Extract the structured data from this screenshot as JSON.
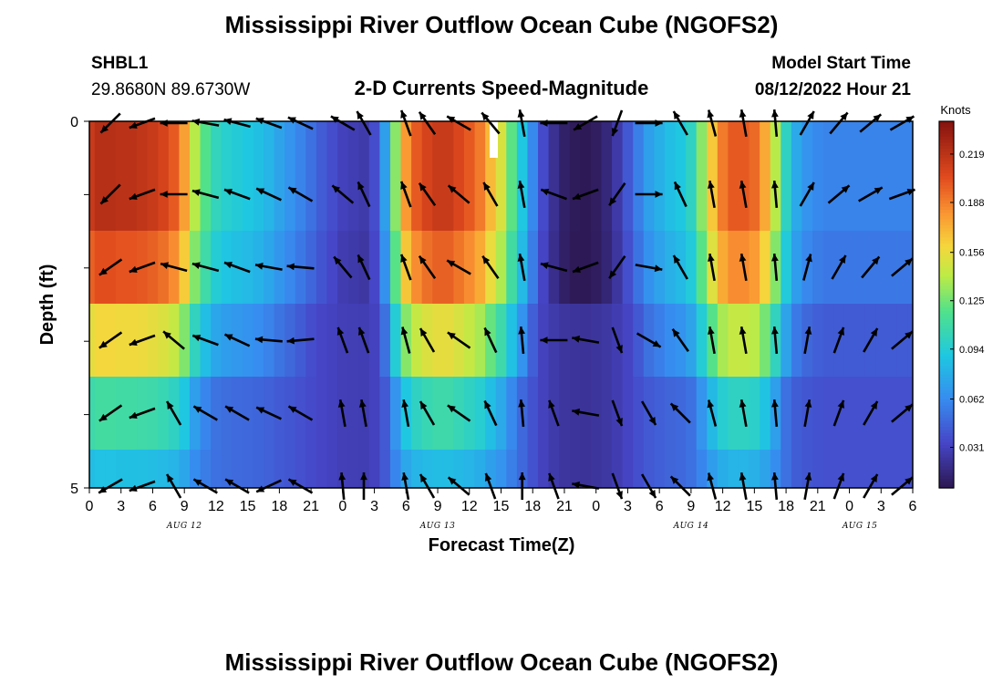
{
  "header": {
    "title": "Mississippi River Outflow Ocean Cube (NGOFS2)",
    "station_id": "SHBL1",
    "coordinates": "29.8680N  89.6730W",
    "subtitle": "2-D Currents Speed-Magnitude",
    "model_start_label": "Model Start Time",
    "model_start_value": "08/12/2022 Hour 21"
  },
  "footer": {
    "title": "Mississippi River Outflow Ocean Cube (NGOFS2)"
  },
  "chart_data": {
    "type": "heatmap",
    "title": "2-D Currents Speed-Magnitude",
    "xlabel": "Forecast Time(Z)",
    "ylabel": "Depth (ft)",
    "colorbar_label": "Knots",
    "colorbar_ticks": [
      "0.219",
      "0.188",
      "0.156",
      "0.125",
      "0.094",
      "0.062",
      "0.031"
    ],
    "colorbar_range": [
      0.005,
      0.24
    ],
    "x_tick_labels": [
      "0",
      "3",
      "6",
      "9",
      "12",
      "15",
      "18",
      "21",
      "0",
      "3",
      "6",
      "9",
      "12",
      "15",
      "18",
      "21",
      "0",
      "3",
      "6",
      "9",
      "12",
      "15",
      "18",
      "21",
      "0",
      "3",
      "6"
    ],
    "x_range_hours": [
      21,
      99
    ],
    "date_labels": [
      {
        "label": "AUG 12",
        "hour": 30
      },
      {
        "label": "AUG 13",
        "hour": 54
      },
      {
        "label": "AUG 14",
        "hour": 78
      },
      {
        "label": "AUG 15",
        "hour": 94
      }
    ],
    "y_tick_labels": [
      "0",
      "5"
    ],
    "y_range": [
      0,
      5
    ],
    "grid": false,
    "speed_profile_hours": [
      21,
      22,
      23,
      24,
      25,
      26,
      27,
      28,
      29,
      30,
      31,
      32,
      33,
      34,
      35,
      36,
      37,
      38,
      39,
      40,
      41,
      42,
      43,
      44,
      45,
      46,
      47,
      48,
      49,
      50,
      51,
      52,
      53,
      54,
      55,
      56,
      57,
      58,
      59,
      60,
      61,
      62,
      63,
      64,
      65,
      66,
      67,
      68,
      69,
      70,
      71,
      72,
      73,
      74,
      75,
      76,
      77,
      78,
      79,
      80,
      81,
      82,
      83,
      84,
      85,
      86,
      87,
      88,
      89,
      90,
      91,
      92,
      93,
      94,
      95,
      96,
      97,
      98,
      99
    ],
    "layer_scales": [
      1.0,
      1.0,
      0.92,
      0.72,
      0.5,
      0.32
    ],
    "speed_profile": [
      0.215,
      0.222,
      0.222,
      0.22,
      0.22,
      0.218,
      0.215,
      0.21,
      0.2,
      0.178,
      0.14,
      0.118,
      0.102,
      0.096,
      0.093,
      0.09,
      0.086,
      0.08,
      0.072,
      0.065,
      0.058,
      0.05,
      0.042,
      0.036,
      0.03,
      0.028,
      0.026,
      0.036,
      0.07,
      0.13,
      0.18,
      0.2,
      0.21,
      0.215,
      0.215,
      0.208,
      0.2,
      0.19,
      0.17,
      0.15,
      0.12,
      0.09,
      0.06,
      0.035,
      0.02,
      0.01,
      0.006,
      0.005,
      0.008,
      0.014,
      0.025,
      0.04,
      0.056,
      0.07,
      0.078,
      0.085,
      0.09,
      0.1,
      0.13,
      0.165,
      0.19,
      0.2,
      0.2,
      0.195,
      0.175,
      0.14,
      0.1,
      0.075,
      0.065,
      0.06,
      0.058,
      0.058,
      0.058,
      0.058,
      0.058,
      0.058,
      0.058,
      0.058,
      0.058
    ],
    "vectors": {
      "hours": [
        23,
        26,
        29,
        32,
        35,
        38,
        41,
        45,
        47,
        51,
        53,
        56,
        59,
        62,
        65,
        68,
        71,
        74,
        77,
        80,
        83,
        86,
        89,
        92,
        95,
        98
      ],
      "angles_deg": [
        [
          225,
          200,
          180,
          170,
          165,
          160,
          155,
          150,
          120,
          110,
          125,
          150,
          130,
          100,
          180,
          210,
          250,
          0,
          120,
          105,
          100,
          95,
          60,
          50,
          40,
          30
        ],
        [
          225,
          200,
          180,
          165,
          160,
          155,
          150,
          140,
          115,
          110,
          125,
          140,
          120,
          100,
          160,
          200,
          235,
          0,
          115,
          100,
          100,
          95,
          60,
          40,
          30,
          20
        ],
        [
          215,
          200,
          165,
          165,
          160,
          170,
          175,
          130,
          115,
          110,
          125,
          150,
          125,
          100,
          165,
          200,
          235,
          350,
          120,
          100,
          100,
          95,
          75,
          60,
          50,
          40
        ],
        [
          215,
          200,
          140,
          160,
          155,
          175,
          185,
          110,
          110,
          105,
          120,
          145,
          115,
          95,
          180,
          170,
          290,
          330,
          125,
          100,
          100,
          95,
          80,
          70,
          60,
          40
        ],
        [
          215,
          200,
          120,
          150,
          150,
          155,
          150,
          100,
          100,
          100,
          120,
          145,
          115,
          95,
          110,
          170,
          290,
          300,
          135,
          105,
          100,
          95,
          80,
          70,
          60,
          40
        ],
        [
          210,
          200,
          120,
          150,
          150,
          205,
          150,
          95,
          90,
          100,
          120,
          140,
          110,
          90,
          110,
          170,
          290,
          300,
          135,
          105,
          100,
          95,
          80,
          70,
          60,
          40
        ]
      ],
      "lengths": [
        [
          30,
          30,
          30,
          30,
          30,
          30,
          30,
          30,
          30,
          30,
          30,
          30,
          30,
          30,
          30,
          30,
          30,
          30,
          30,
          30,
          30,
          30,
          30,
          30,
          30,
          30
        ],
        [
          30,
          30,
          30,
          30,
          30,
          30,
          30,
          30,
          30,
          30,
          30,
          30,
          30,
          30,
          30,
          30,
          30,
          30,
          30,
          30,
          30,
          30,
          30,
          30,
          30,
          30
        ],
        [
          30,
          30,
          30,
          30,
          30,
          30,
          30,
          30,
          30,
          30,
          30,
          30,
          30,
          30,
          30,
          30,
          30,
          30,
          30,
          30,
          30,
          30,
          30,
          30,
          30,
          30
        ],
        [
          30,
          30,
          30,
          30,
          30,
          30,
          30,
          30,
          30,
          30,
          30,
          30,
          30,
          30,
          30,
          30,
          30,
          30,
          30,
          30,
          30,
          30,
          30,
          30,
          30,
          30
        ],
        [
          30,
          30,
          30,
          30,
          30,
          30,
          30,
          30,
          30,
          30,
          30,
          30,
          30,
          30,
          30,
          30,
          30,
          30,
          30,
          30,
          30,
          30,
          30,
          30,
          30,
          30
        ],
        [
          30,
          30,
          30,
          30,
          30,
          30,
          30,
          30,
          30,
          30,
          30,
          30,
          30,
          30,
          30,
          30,
          30,
          30,
          30,
          30,
          30,
          30,
          30,
          30,
          30,
          30
        ]
      ]
    }
  }
}
